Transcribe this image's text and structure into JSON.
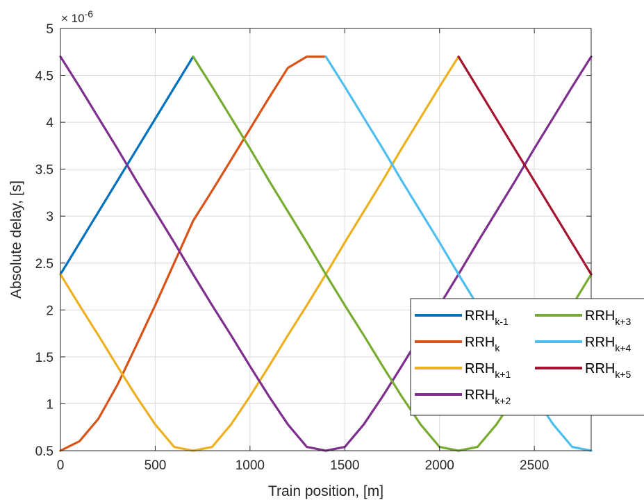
{
  "chart_data": {
    "type": "line",
    "title": "",
    "xlabel": "Train position, [m]",
    "ylabel": "Absolute delay, [s]",
    "y_exponent_label": "× 10",
    "y_exponent_power": "-6",
    "xlim": [
      0,
      2800
    ],
    "ylim": [
      0.5,
      5
    ],
    "xticks": [
      0,
      500,
      1000,
      1500,
      2000,
      2500
    ],
    "xtick_labels": [
      "0",
      "500",
      "1000",
      "1500",
      "2000",
      "2500"
    ],
    "yticks": [
      0.5,
      1,
      1.5,
      2,
      2.5,
      3,
      3.5,
      4,
      4.5,
      5
    ],
    "ytick_labels": [
      "0.5",
      "1",
      "1.5",
      "2",
      "2.5",
      "3",
      "3.5",
      "4",
      "4.5",
      "5"
    ],
    "grid": true,
    "legend_position": "lower-right",
    "legend_columns": 2,
    "series": [
      {
        "name": "RRH",
        "sub": "k-1",
        "color": "#0072BD",
        "x": [
          0,
          700
        ],
        "y": [
          2.38,
          4.7
        ]
      },
      {
        "name": "RRH",
        "sub": "k",
        "color": "#D95319",
        "x": [
          0,
          100,
          200,
          300,
          400,
          500,
          600,
          700,
          800,
          900,
          1000,
          1100,
          1200,
          1300,
          1400
        ],
        "y": [
          0.5,
          0.6,
          0.84,
          1.2,
          1.62,
          2.05,
          2.5,
          2.95,
          3.27,
          3.6,
          3.93,
          4.26,
          4.58,
          4.7,
          4.7
        ]
      },
      {
        "name": "RRH",
        "sub": "k+1",
        "color": "#EDB120",
        "x": [
          0,
          100,
          200,
          300,
          400,
          500,
          600,
          700,
          800,
          900,
          1000,
          1100,
          1200,
          1300,
          1400,
          1500,
          1600,
          1700,
          1800,
          1900,
          2000,
          2100
        ],
        "y": [
          2.38,
          2.05,
          1.73,
          1.4,
          1.08,
          0.78,
          0.54,
          0.5,
          0.54,
          0.78,
          1.08,
          1.4,
          1.73,
          2.05,
          2.38,
          2.72,
          3.05,
          3.38,
          3.72,
          4.05,
          4.38,
          4.7
        ]
      },
      {
        "name": "RRH",
        "sub": "k+2",
        "color": "#7E2F8E",
        "x": [
          0,
          100,
          200,
          300,
          400,
          500,
          600,
          700,
          800,
          900,
          1000,
          1100,
          1200,
          1300,
          1400,
          1500,
          1600,
          1700,
          1800,
          1900,
          2000,
          2100,
          2200,
          2300,
          2400,
          2500,
          2600,
          2700,
          2800
        ],
        "y": [
          4.7,
          4.38,
          4.05,
          3.72,
          3.38,
          3.05,
          2.72,
          2.38,
          2.05,
          1.73,
          1.4,
          1.08,
          0.78,
          0.54,
          0.5,
          0.54,
          0.78,
          1.08,
          1.4,
          1.73,
          2.05,
          2.38,
          2.72,
          3.05,
          3.38,
          3.72,
          4.05,
          4.38,
          4.7
        ]
      },
      {
        "name": "RRH",
        "sub": "k+3",
        "color": "#77AC30",
        "x": [
          700,
          800,
          900,
          1000,
          1100,
          1200,
          1300,
          1400,
          1500,
          1600,
          1700,
          1800,
          1900,
          2000,
          2100,
          2200,
          2300,
          2400,
          2500,
          2600,
          2700,
          2800
        ],
        "y": [
          4.7,
          4.38,
          4.05,
          3.72,
          3.38,
          3.05,
          2.72,
          2.38,
          2.05,
          1.73,
          1.4,
          1.08,
          0.78,
          0.54,
          0.5,
          0.54,
          0.78,
          1.08,
          1.4,
          1.73,
          2.05,
          2.38
        ]
      },
      {
        "name": "RRH",
        "sub": "k+4",
        "color": "#4DBEEE",
        "x": [
          1400,
          1500,
          1600,
          1700,
          1800,
          1900,
          2000,
          2100,
          2200,
          2300,
          2400,
          2500,
          2600,
          2700,
          2800
        ],
        "y": [
          4.7,
          4.38,
          4.05,
          3.72,
          3.38,
          3.05,
          2.72,
          2.38,
          2.05,
          1.73,
          1.4,
          1.08,
          0.78,
          0.54,
          0.5
        ]
      },
      {
        "name": "RRH",
        "sub": "k+5",
        "color": "#A2142F",
        "x": [
          2100,
          2800
        ],
        "y": [
          4.7,
          2.38
        ]
      }
    ]
  }
}
